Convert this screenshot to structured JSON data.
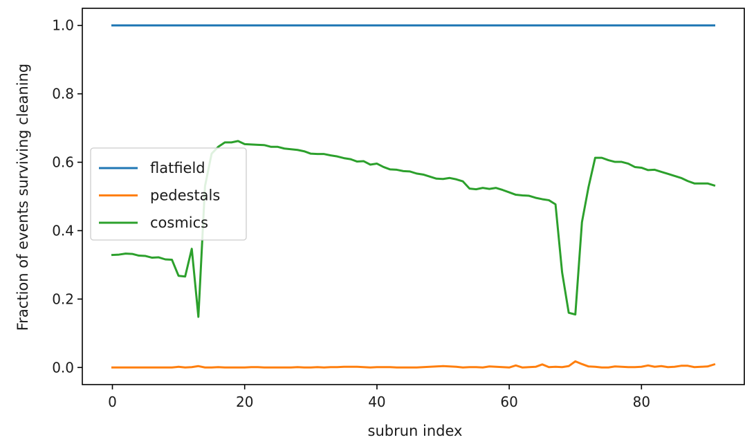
{
  "chart_data": {
    "type": "line",
    "xlabel": "subrun index",
    "ylabel": "Fraction of events surviving cleaning",
    "xlim": [
      -4.55,
      95.55
    ],
    "ylim": [
      -0.05,
      1.05
    ],
    "xticks": [
      0,
      20,
      40,
      60,
      80
    ],
    "yticks": [
      0.0,
      0.2,
      0.4,
      0.6,
      0.8,
      1.0
    ],
    "xtick_labels": [
      "0",
      "20",
      "40",
      "60",
      "80"
    ],
    "ytick_labels": [
      "0.0",
      "0.2",
      "0.4",
      "0.6",
      "0.8",
      "1.0"
    ],
    "grid": false,
    "legend_position": "center-left",
    "x": [
      0,
      1,
      2,
      3,
      4,
      5,
      6,
      7,
      8,
      9,
      10,
      11,
      12,
      13,
      14,
      15,
      16,
      17,
      18,
      19,
      20,
      21,
      22,
      23,
      24,
      25,
      26,
      27,
      28,
      29,
      30,
      31,
      32,
      33,
      34,
      35,
      36,
      37,
      38,
      39,
      40,
      41,
      42,
      43,
      44,
      45,
      46,
      47,
      48,
      49,
      50,
      51,
      52,
      53,
      54,
      55,
      56,
      57,
      58,
      59,
      60,
      61,
      62,
      63,
      64,
      65,
      66,
      67,
      68,
      69,
      70,
      71,
      72,
      73,
      74,
      75,
      76,
      77,
      78,
      79,
      80,
      81,
      82,
      83,
      84,
      85,
      86,
      87,
      88,
      89,
      90,
      91
    ],
    "series": [
      {
        "name": "flatfield",
        "color": "#1f77b4",
        "values": [
          1,
          1,
          1,
          1,
          1,
          1,
          1,
          1,
          1,
          1,
          1,
          1,
          1,
          1,
          1,
          1,
          1,
          1,
          1,
          1,
          1,
          1,
          1,
          1,
          1,
          1,
          1,
          1,
          1,
          1,
          1,
          1,
          1,
          1,
          1,
          1,
          1,
          1,
          1,
          1,
          1,
          1,
          1,
          1,
          1,
          1,
          1,
          1,
          1,
          1,
          1,
          1,
          1,
          1,
          1,
          1,
          1,
          1,
          1,
          1,
          1,
          1,
          1,
          1,
          1,
          1,
          1,
          1,
          1,
          1,
          1,
          1,
          1,
          1,
          1,
          1,
          1,
          1,
          1,
          1,
          1,
          1,
          1,
          1,
          1,
          1,
          1,
          1,
          1,
          1,
          1,
          1
        ]
      },
      {
        "name": "pedestals",
        "color": "#ff7f0e",
        "values": [
          0,
          0,
          0,
          0,
          0,
          0,
          0,
          0,
          0,
          0,
          0.002,
          0,
          0.001,
          0.004,
          0,
          0,
          0.001,
          0,
          0,
          0,
          0,
          0.001,
          0.001,
          0,
          0,
          0,
          0,
          0,
          0.001,
          0,
          0,
          0.001,
          0,
          0.001,
          0.001,
          0.002,
          0.002,
          0.002,
          0.001,
          0,
          0.001,
          0.001,
          0.001,
          0,
          0,
          0,
          0,
          0.001,
          0.002,
          0.003,
          0.004,
          0.003,
          0.002,
          0,
          0.001,
          0.001,
          0,
          0.003,
          0.002,
          0.001,
          0,
          0.006,
          0,
          0.001,
          0.002,
          0.009,
          0.001,
          0.002,
          0.001,
          0.004,
          0.018,
          0.01,
          0.003,
          0.002,
          0,
          0,
          0.003,
          0.002,
          0.001,
          0.001,
          0.002,
          0.006,
          0.002,
          0.004,
          0.001,
          0.002,
          0.005,
          0.005,
          0.001,
          0.002,
          0.003,
          0.009
        ]
      },
      {
        "name": "cosmics",
        "color": "#2ca02c",
        "values": [
          0.329,
          0.33,
          0.333,
          0.332,
          0.327,
          0.326,
          0.321,
          0.322,
          0.316,
          0.315,
          0.268,
          0.266,
          0.347,
          0.148,
          0.53,
          0.625,
          0.645,
          0.658,
          0.658,
          0.662,
          0.653,
          0.652,
          0.651,
          0.65,
          0.645,
          0.645,
          0.64,
          0.638,
          0.636,
          0.632,
          0.625,
          0.624,
          0.624,
          0.62,
          0.617,
          0.612,
          0.609,
          0.602,
          0.603,
          0.593,
          0.596,
          0.586,
          0.579,
          0.578,
          0.574,
          0.573,
          0.567,
          0.564,
          0.558,
          0.552,
          0.551,
          0.554,
          0.55,
          0.544,
          0.523,
          0.521,
          0.525,
          0.522,
          0.525,
          0.519,
          0.512,
          0.505,
          0.503,
          0.502,
          0.496,
          0.492,
          0.489,
          0.477,
          0.278,
          0.16,
          0.155,
          0.425,
          0.528,
          0.613,
          0.613,
          0.606,
          0.601,
          0.601,
          0.596,
          0.586,
          0.584,
          0.577,
          0.578,
          0.572,
          0.566,
          0.56,
          0.554,
          0.545,
          0.538,
          0.538,
          0.538,
          0.532
        ]
      }
    ]
  }
}
